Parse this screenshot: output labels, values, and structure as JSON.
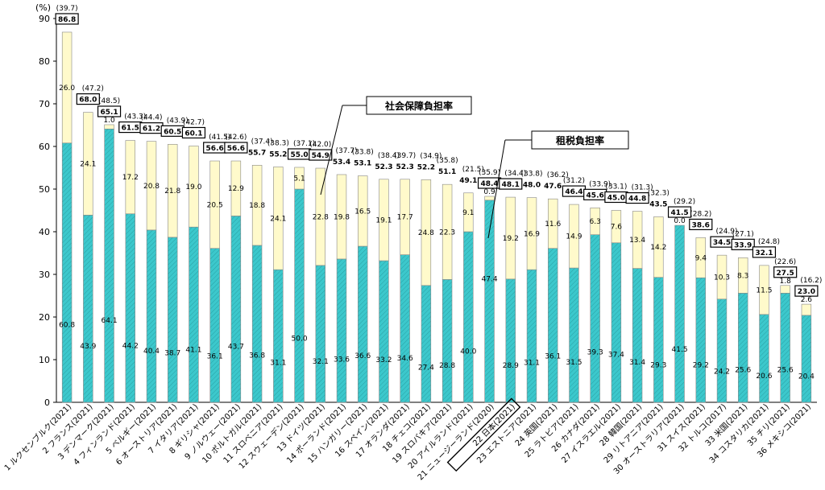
{
  "chart_data": {
    "type": "bar",
    "stacked": true,
    "ylabel": "(%)",
    "ylim": [
      0,
      90
    ],
    "yticks": [
      0,
      10,
      20,
      30,
      40,
      50,
      60,
      70,
      80,
      90
    ],
    "grid": false,
    "colors": {
      "tax": "#3cc8cc",
      "social": "#fffacb",
      "outline": "#888888"
    },
    "annotations": {
      "social_security": "社会保障負担率",
      "tax": "租税負担率"
    },
    "highlight_category": "22 日本(2021)",
    "categories": [
      "1 ルクセンブルク(2021)",
      "2 フランス(2021)",
      "3 デンマーク(2021)",
      "4 フィンランド(2021)",
      "5 ベルギー(2021)",
      "6 オーストリア(2021)",
      "7 イタリア(2021)",
      "8 ギリシャ(2021)",
      "9 ノルウェー(2021)",
      "10 ポルトガル(2021)",
      "11 スロベニア(2021)",
      "12 スウェーデン(2021)",
      "13 ドイツ(2021)",
      "14 ポーランド(2021)",
      "15 ハンガリー(2021)",
      "16 スペイン(2021)",
      "17 オランダ(2021)",
      "18 チェコ(2021)",
      "19 スロバキア(2021)",
      "20 アイルランド(2021)",
      "21 ニュージーランド(2020)",
      "22 日本(2021)",
      "23 エストニア(2021)",
      "24 英国(2021)",
      "25 ラトビア(2021)",
      "26 カナダ(2021)",
      "27 イスラエル(2021)",
      "28 韓国(2021)",
      "29 リトアニア(2021)",
      "30 オーストラリア(2021)",
      "31 スイス(2021)",
      "32 トルコ(2017)",
      "33 米国(2021)",
      "34 コスタリカ(2021)",
      "35 チリ(2021)",
      "36 メキシコ(2021)"
    ],
    "series": [
      {
        "key": "tax",
        "values": [
          60.8,
          43.9,
          64.1,
          44.2,
          40.4,
          38.7,
          41.1,
          36.1,
          43.7,
          36.8,
          31.1,
          50.0,
          32.1,
          33.6,
          36.6,
          33.2,
          34.6,
          27.4,
          28.8,
          40.0,
          47.4,
          28.9,
          31.1,
          36.1,
          31.5,
          39.3,
          37.4,
          31.4,
          29.3,
          41.5,
          29.2,
          24.2,
          25.6,
          20.6,
          25.6,
          20.4
        ]
      },
      {
        "key": "social",
        "values": [
          26.0,
          24.1,
          1.0,
          17.2,
          20.8,
          21.8,
          19.0,
          20.5,
          12.9,
          18.8,
          24.1,
          5.1,
          22.8,
          19.8,
          16.5,
          19.1,
          17.7,
          24.8,
          22.3,
          9.1,
          0.9,
          19.2,
          16.9,
          11.6,
          14.9,
          6.3,
          7.6,
          13.4,
          14.2,
          0.0,
          9.4,
          10.3,
          8.3,
          11.5,
          1.8,
          2.6
        ]
      }
    ],
    "totals": [
      86.8,
      68.0,
      65.1,
      61.5,
      61.2,
      60.5,
      60.1,
      56.6,
      56.6,
      55.7,
      55.2,
      55.0,
      54.9,
      53.4,
      53.1,
      52.3,
      52.3,
      52.2,
      51.1,
      49.1,
      48.4,
      48.1,
      48.0,
      47.6,
      46.4,
      45.6,
      45.0,
      44.8,
      43.5,
      41.5,
      38.6,
      34.5,
      33.9,
      32.1,
      27.5,
      23.0
    ],
    "totals_boxed": [
      true,
      true,
      true,
      true,
      true,
      true,
      true,
      true,
      true,
      false,
      false,
      true,
      true,
      false,
      false,
      false,
      false,
      false,
      false,
      false,
      true,
      true,
      false,
      false,
      true,
      true,
      true,
      true,
      false,
      true,
      true,
      true,
      true,
      true,
      true,
      true
    ],
    "deficit_adjusted": [
      "(39.7)",
      "(47.2)",
      "(48.5)",
      "(43.3)",
      "(44.4)",
      "(43.9)",
      "(42.7)",
      "(41.5)",
      "(42.6)",
      "(37.4)",
      "(38.3)",
      "(37.1)",
      "(42.0)",
      "(37.7)",
      "(33.8)",
      "(38.4)",
      "(39.7)",
      "(34.9)",
      "(35.8)",
      "(21.5)",
      "(35.9)",
      "(34.4)",
      "(33.8)",
      "(36.2)",
      "(31.2)",
      "(33.9)",
      "(33.1)",
      "(31.3)",
      "(32.3)",
      "(29.2)",
      "(28.2)",
      "(24.9)",
      "(27.1)",
      "(24.8)",
      "(22.6)",
      "(16.2)"
    ]
  }
}
